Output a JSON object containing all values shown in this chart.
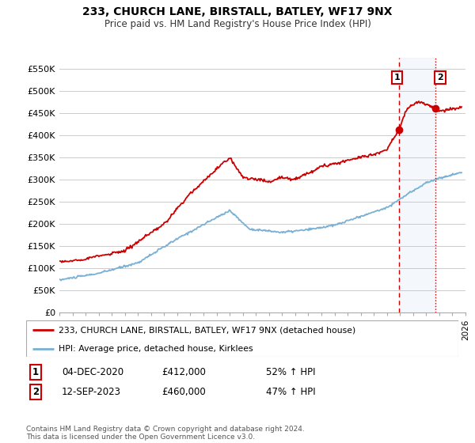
{
  "title": "233, CHURCH LANE, BIRSTALL, BATLEY, WF17 9NX",
  "subtitle": "Price paid vs. HM Land Registry's House Price Index (HPI)",
  "ylim": [
    0,
    575000
  ],
  "yticks": [
    0,
    50000,
    100000,
    150000,
    200000,
    250000,
    300000,
    350000,
    400000,
    450000,
    500000,
    550000
  ],
  "ytick_labels": [
    "£0",
    "£50K",
    "£100K",
    "£150K",
    "£200K",
    "£250K",
    "£300K",
    "£350K",
    "£400K",
    "£450K",
    "£500K",
    "£550K"
  ],
  "price_color": "#cc0000",
  "hpi_color": "#7ab0d4",
  "sale1_x": 2020.92,
  "sale1_y": 412000,
  "sale2_x": 2023.71,
  "sale2_y": 460000,
  "sale1_label": "04-DEC-2020",
  "sale1_price": "£412,000",
  "sale1_pct": "52% ↑ HPI",
  "sale2_label": "12-SEP-2023",
  "sale2_price": "£460,000",
  "sale2_pct": "47% ↑ HPI",
  "legend_label1": "233, CHURCH LANE, BIRSTALL, BATLEY, WF17 9NX (detached house)",
  "legend_label2": "HPI: Average price, detached house, Kirklees",
  "footer": "Contains HM Land Registry data © Crown copyright and database right 2024.\nThis data is licensed under the Open Government Licence v3.0.",
  "xmin": 1995,
  "xmax": 2026,
  "background_color": "#ffffff",
  "plot_bg": "#ffffff",
  "grid_color": "#cccccc"
}
